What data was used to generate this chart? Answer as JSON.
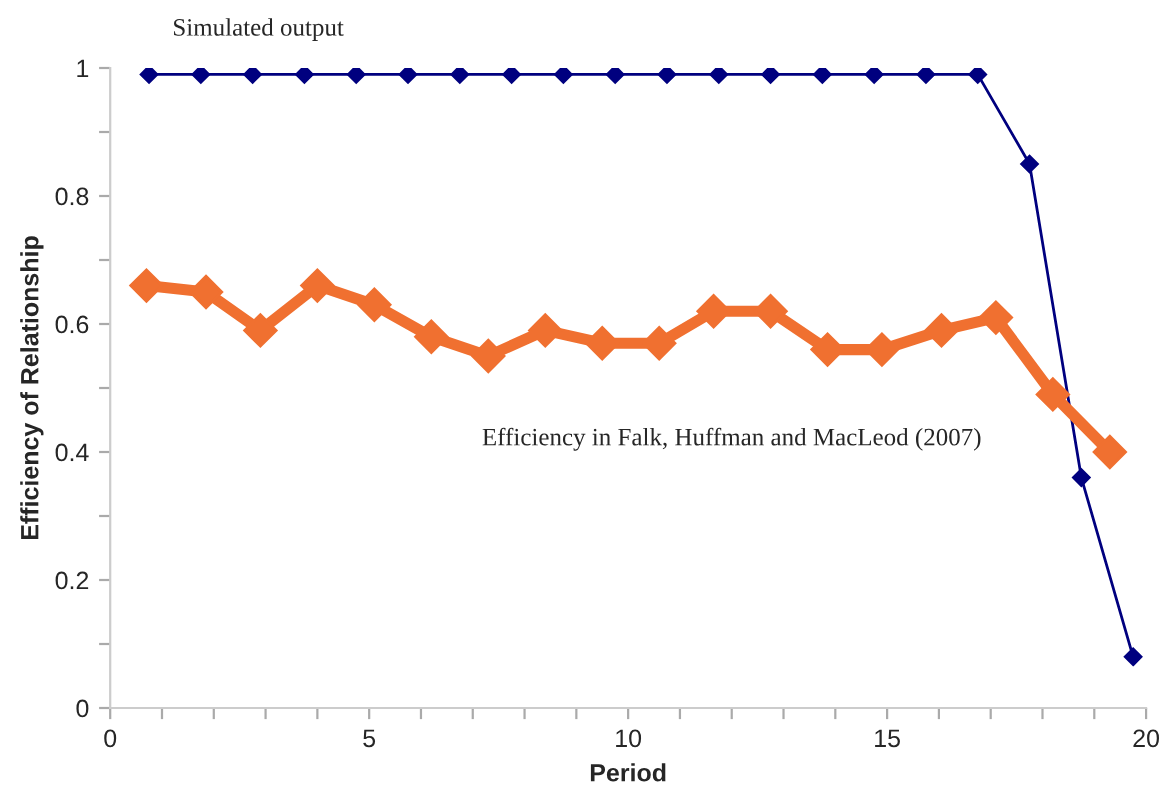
{
  "chart_data": {
    "type": "line",
    "xlabel": "Period",
    "ylabel": "Efficiency of Relationship",
    "xlim": [
      0,
      20
    ],
    "ylim": [
      0,
      1
    ],
    "xticks": [
      0,
      {
        "value": 1,
        "label": null
      },
      {
        "value": 2,
        "label": null
      },
      {
        "value": 3,
        "label": null
      },
      {
        "value": 4,
        "label": null
      },
      5,
      {
        "value": 6,
        "label": null
      },
      {
        "value": 7,
        "label": null
      },
      {
        "value": 8,
        "label": null
      },
      {
        "value": 9,
        "label": null
      },
      10,
      {
        "value": 11,
        "label": null
      },
      {
        "value": 12,
        "label": null
      },
      {
        "value": 13,
        "label": null
      },
      {
        "value": 14,
        "label": null
      },
      15,
      {
        "value": 16,
        "label": null
      },
      {
        "value": 17,
        "label": null
      },
      {
        "value": 18,
        "label": null
      },
      {
        "value": 19,
        "label": null
      },
      20
    ],
    "yticks": [
      0,
      {
        "value": 0.1,
        "label": null
      },
      0.2,
      {
        "value": 0.3,
        "label": null
      },
      0.4,
      {
        "value": 0.5,
        "label": null
      },
      0.6,
      {
        "value": 0.7,
        "label": null
      },
      0.8,
      {
        "value": 0.9,
        "label": null
      },
      1
    ],
    "grid": false,
    "legend": false,
    "marker": "diamond",
    "line_style": "solid",
    "series": [
      {
        "name": "Simulated output",
        "color": "#00007f",
        "x": [
          0.75,
          1.75,
          2.75,
          3.75,
          4.75,
          5.75,
          6.75,
          7.75,
          8.75,
          9.75,
          10.75,
          11.75,
          12.75,
          13.75,
          14.75,
          15.75,
          16.75,
          17.75,
          18.75,
          19.75
        ],
        "values": [
          0.99,
          0.99,
          0.99,
          0.99,
          0.99,
          0.99,
          0.99,
          0.99,
          0.99,
          0.99,
          0.99,
          0.99,
          0.99,
          0.99,
          0.99,
          0.99,
          0.99,
          0.85,
          0.36,
          0.08
        ]
      },
      {
        "name": "Efficiency in Falk, Huffman and MacLeod (2007)",
        "color": "#f07030",
        "x": [
          0.7,
          1.85,
          2.9,
          4.0,
          5.1,
          6.2,
          7.3,
          8.4,
          9.5,
          10.6,
          11.65,
          12.75,
          13.85,
          14.9,
          16.05,
          17.1,
          18.2,
          19.3
        ],
        "values": [
          0.66,
          0.65,
          0.59,
          0.66,
          0.63,
          0.58,
          0.55,
          0.59,
          0.57,
          0.57,
          0.62,
          0.62,
          0.56,
          0.56,
          0.59,
          0.61,
          0.49,
          0.4
        ]
      }
    ]
  }
}
